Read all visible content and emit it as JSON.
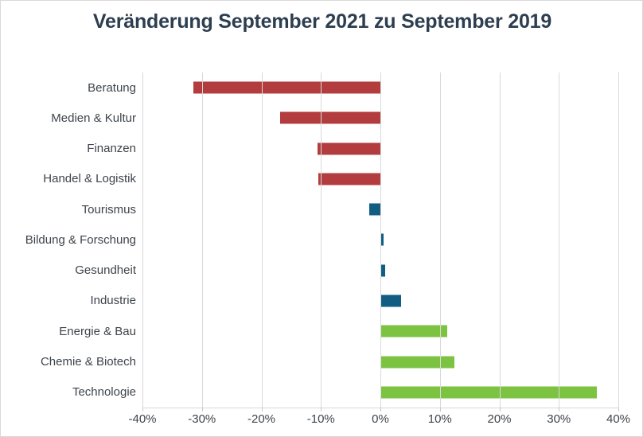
{
  "page": {
    "background": "#ffffff",
    "border_color": "#d9d9d9"
  },
  "chart_data": {
    "type": "bar",
    "orientation": "horizontal",
    "title": "Veränderung September 2021 zu September 2019",
    "categories": [
      "Beratung",
      "Medien & Kultur",
      "Finanzen",
      "Handel & Logistik",
      "Tourismus",
      "Bildung & Forschung",
      "Gesundheit",
      "Industrie",
      "Energie & Bau",
      "Chemie & Biotech",
      "Technologie"
    ],
    "values": [
      -31.5,
      -16.8,
      -10.6,
      -10.5,
      -1.9,
      0.5,
      0.8,
      3.5,
      11.3,
      12.5,
      36.4
    ],
    "unit": "%",
    "bar_colors": [
      "#b23c3e",
      "#b23c3e",
      "#b23c3e",
      "#b23c3e",
      "#115e82",
      "#115e82",
      "#115e82",
      "#115e82",
      "#7cc342",
      "#7cc342",
      "#7cc342"
    ],
    "color_meaning": {
      "negative": "#b23c3e",
      "near_zero": "#115e82",
      "positive": "#7cc342"
    },
    "xlim": [
      -40,
      40
    ],
    "x_ticks": [
      -40,
      -30,
      -20,
      -10,
      0,
      10,
      20,
      30,
      40
    ],
    "x_tick_labels": [
      "-40%",
      "-30%",
      "-20%",
      "-10%",
      "0%",
      "10%",
      "20%",
      "30%",
      "40%"
    ],
    "grid": "vertical",
    "legend": "none",
    "styles": {
      "title_color": "#2d3e50",
      "label_color": "#3e444b",
      "grid_color": "#d9d9d9"
    }
  }
}
